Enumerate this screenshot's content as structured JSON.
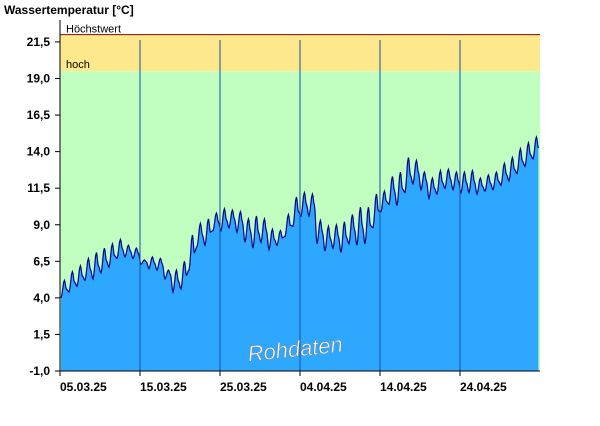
{
  "chart_data": {
    "type": "area",
    "title": "Wassertemperatur [°C]",
    "xlabel": "",
    "ylabel": "",
    "ylim": [
      -1.0,
      23.0
    ],
    "yticks": [
      -1.0,
      1.5,
      4.0,
      6.5,
      9.0,
      11.5,
      14.0,
      16.5,
      19.0,
      21.5
    ],
    "ytick_labels": [
      "-1,0",
      "1,5",
      "4,0",
      "6,5",
      "9,0",
      "11,5",
      "14,0",
      "16,5",
      "19,0",
      "21,5"
    ],
    "xlim": [
      "2025-03-05",
      "2025-05-04"
    ],
    "xtick_labels": [
      "05.03.25",
      "15.03.25",
      "25.03.25",
      "04.04.25",
      "14.04.25",
      "24.04.25"
    ],
    "xtick_dates": [
      "2025-03-05",
      "2025-03-15",
      "2025-03-25",
      "2025-04-04",
      "2025-04-14",
      "2025-04-24"
    ],
    "grid": false,
    "bands": [
      {
        "label": "hoch",
        "from": 19.5,
        "to": 22.0,
        "color": "#fde98c"
      },
      {
        "label": "",
        "from": -1.0,
        "to": 19.5,
        "color": "#c0ffc0"
      }
    ],
    "threshold_lines": [
      {
        "label": "Höchstwert",
        "value": 22.0,
        "color": "#8b0000"
      }
    ],
    "annotation": "Rohdaten",
    "colors": {
      "area_fill": "#2ea8ff",
      "area_line": "#00008b",
      "day_lines": "#1a4f9c"
    },
    "series": [
      {
        "x": [
          "2025-03-05",
          "2025-03-06",
          "2025-03-07",
          "2025-03-08",
          "2025-03-09",
          "2025-03-10",
          "2025-03-11",
          "2025-03-12",
          "2025-03-13",
          "2025-03-14",
          "2025-03-15",
          "2025-03-16",
          "2025-03-17",
          "2025-03-18",
          "2025-03-19",
          "2025-03-20",
          "2025-03-21",
          "2025-03-22",
          "2025-03-23",
          "2025-03-24",
          "2025-03-25",
          "2025-03-26",
          "2025-03-27",
          "2025-03-28",
          "2025-03-29",
          "2025-03-30",
          "2025-03-31",
          "2025-04-01",
          "2025-04-02",
          "2025-04-03",
          "2025-04-04",
          "2025-04-05",
          "2025-04-06",
          "2025-04-07",
          "2025-04-08",
          "2025-04-09",
          "2025-04-10",
          "2025-04-11",
          "2025-04-12",
          "2025-04-13",
          "2025-04-14",
          "2025-04-15",
          "2025-04-16",
          "2025-04-17",
          "2025-04-18",
          "2025-04-19",
          "2025-04-20",
          "2025-04-21",
          "2025-04-22",
          "2025-04-23",
          "2025-04-24",
          "2025-04-25",
          "2025-04-26",
          "2025-04-27",
          "2025-04-28",
          "2025-04-29",
          "2025-04-30",
          "2025-05-01",
          "2025-05-02",
          "2025-05-03"
        ],
        "min": [
          4.0,
          4.4,
          4.8,
          5.2,
          5.3,
          5.7,
          6.1,
          6.7,
          6.8,
          6.7,
          6.3,
          6.0,
          5.9,
          5.3,
          4.4,
          4.6,
          5.9,
          7.5,
          7.6,
          8.6,
          8.6,
          8.8,
          8.5,
          7.8,
          7.4,
          7.8,
          7.3,
          7.6,
          8.2,
          8.9,
          9.6,
          9.6,
          7.7,
          7.2,
          7.4,
          7.1,
          7.7,
          7.6,
          7.7,
          8.8,
          9.9,
          10.4,
          10.3,
          11.2,
          11.8,
          11.4,
          10.8,
          11.1,
          11.5,
          11.4,
          11.2,
          11.2,
          11.1,
          11.3,
          11.4,
          11.7,
          12.0,
          12.5,
          13.0,
          13.5
        ],
        "max": [
          5.2,
          5.8,
          6.2,
          6.7,
          7.1,
          7.4,
          7.7,
          8.0,
          7.6,
          7.4,
          6.6,
          6.8,
          6.7,
          5.9,
          5.9,
          6.5,
          8.3,
          9.1,
          9.4,
          9.8,
          10.1,
          10.0,
          9.9,
          9.4,
          9.6,
          9.4,
          8.7,
          8.6,
          9.7,
          10.9,
          11.2,
          11.1,
          9.3,
          8.9,
          9.0,
          9.2,
          9.7,
          10.2,
          10.2,
          11.1,
          11.3,
          12.3,
          12.6,
          13.6,
          13.4,
          12.6,
          12.2,
          12.7,
          12.8,
          12.6,
          12.6,
          12.7,
          12.2,
          12.4,
          12.6,
          13.2,
          13.6,
          14.2,
          14.6,
          15.0
        ]
      }
    ]
  }
}
